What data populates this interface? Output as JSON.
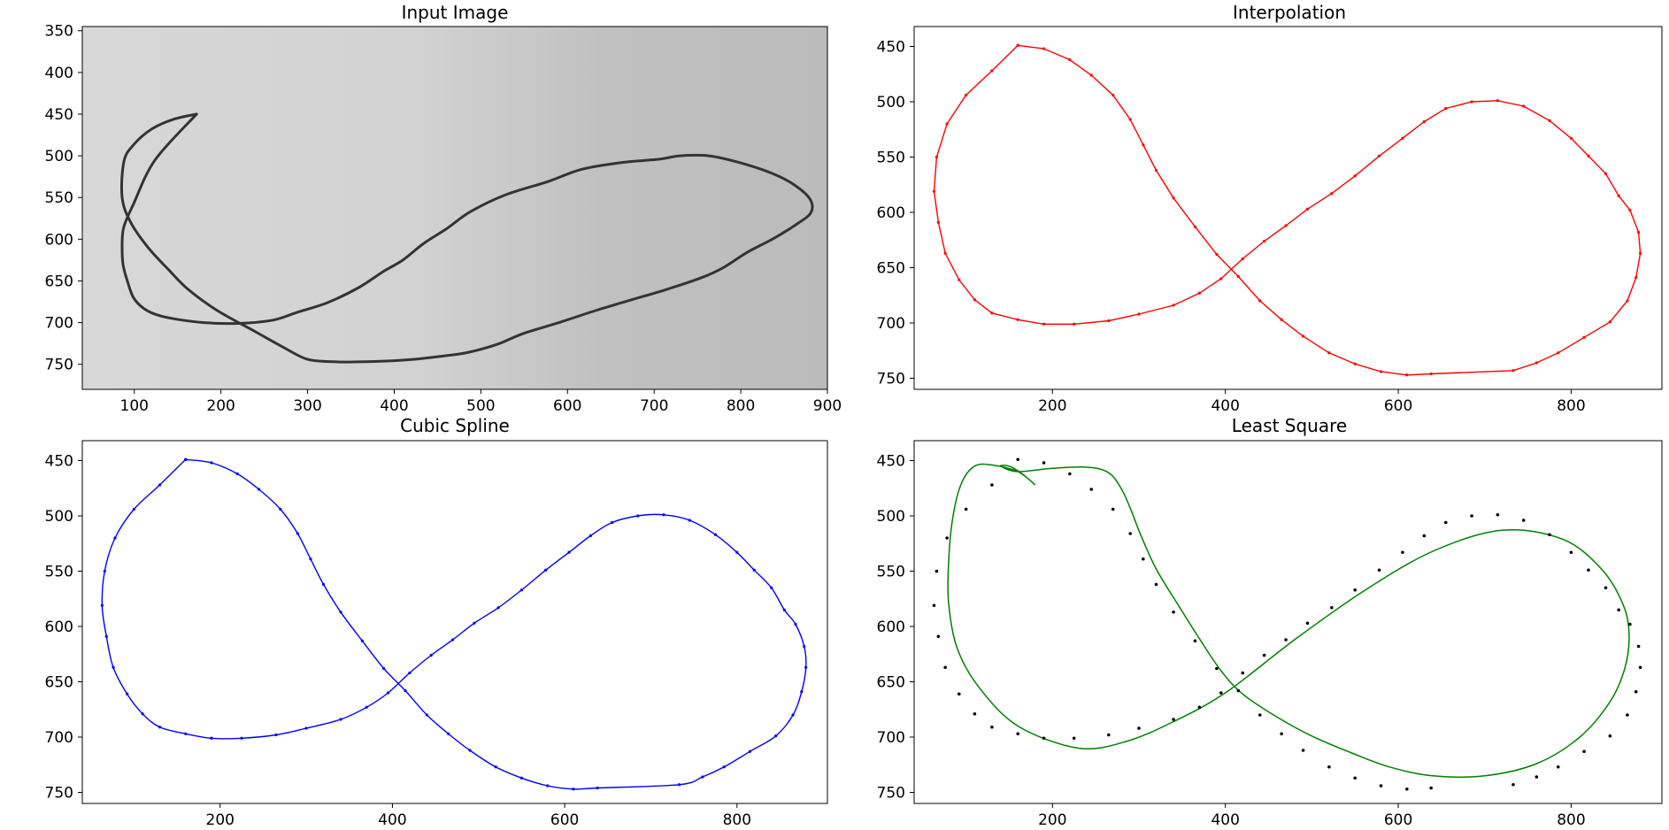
{
  "chart_data": [
    {
      "type": "image",
      "title": "Input Image",
      "xlim": [
        40,
        900
      ],
      "ylim": [
        780,
        345
      ],
      "xticks": [
        100,
        200,
        300,
        400,
        500,
        600,
        700,
        800,
        900
      ],
      "yticks": [
        350,
        400,
        450,
        500,
        550,
        600,
        650,
        700,
        750
      ],
      "background": "grayscale photo of a hand-drawn figure-eight curve",
      "stroke_color": "#333333",
      "curve": {
        "x": [
          172,
          146,
          120,
          99,
          88,
          86,
          96,
          116,
          140,
          162,
          195,
          240,
          271,
          300,
          333,
          359,
          392,
          422,
          449,
          484,
          519,
          549,
          590,
          634,
          676,
          715,
          755,
          780,
          807,
          838,
          866,
          881,
          880,
          862,
          836,
          798,
          763,
          730,
          706,
          663,
          617,
          577,
          528,
          488,
          461,
          434,
          410,
          387,
          359,
          323,
          287,
          260,
          220,
          181,
          149,
          127,
          111,
          99,
          92,
          87,
          86,
          88,
          99,
          124,
          172
        ],
        "y": [
          450,
          456,
          468,
          487,
          507,
          550,
          580,
          610,
          637,
          660,
          685,
          711,
          729,
          744,
          747,
          747,
          746,
          744,
          741,
          736,
          726,
          713,
          700,
          685,
          672,
          660,
          646,
          634,
          616,
          599,
          581,
          568,
          552,
          535,
          521,
          508,
          500,
          500,
          504,
          508,
          516,
          531,
          547,
          567,
          587,
          605,
          625,
          639,
          658,
          676,
          688,
          697,
          701,
          700,
          696,
          691,
          683,
          670,
          650,
          630,
          605,
          585,
          558,
          505,
          450
        ]
      }
    },
    {
      "type": "line",
      "title": "Interpolation",
      "xlim": [
        40,
        905
      ],
      "ylim": [
        760,
        432
      ],
      "xticks": [
        200,
        400,
        600,
        800
      ],
      "yticks": [
        450,
        500,
        550,
        600,
        650,
        700,
        750
      ],
      "color": "#ff0000",
      "x": [
        160,
        190,
        220,
        245,
        270,
        290,
        305,
        320,
        340,
        365,
        390,
        415,
        440,
        465,
        490,
        520,
        550,
        580,
        610,
        638,
        733,
        760,
        785,
        815,
        845,
        865,
        875,
        880,
        878,
        868,
        855,
        840,
        820,
        800,
        775,
        745,
        715,
        685,
        655,
        630,
        605,
        578,
        550,
        523,
        495,
        470,
        445,
        420,
        395,
        370,
        340,
        300,
        265,
        225,
        190,
        160,
        130,
        110,
        92,
        76,
        68,
        63,
        66,
        78,
        100,
        130,
        160
      ],
      "y": [
        449,
        452,
        462,
        476,
        494,
        516,
        539,
        562,
        587,
        613,
        638,
        658,
        680,
        697,
        712,
        727,
        737,
        744,
        747,
        746,
        743,
        736,
        727,
        713,
        699,
        680,
        659,
        637,
        618,
        598,
        585,
        565,
        549,
        533,
        517,
        504,
        499,
        500,
        506,
        518,
        533,
        549,
        567,
        583,
        597,
        612,
        626,
        642,
        660,
        673,
        684,
        692,
        698,
        701,
        701,
        697,
        691,
        679,
        661,
        637,
        609,
        581,
        550,
        520,
        494,
        472,
        449
      ]
    },
    {
      "type": "line",
      "title": "Cubic Spline",
      "xlim": [
        40,
        905
      ],
      "ylim": [
        760,
        432
      ],
      "xticks": [
        200,
        400,
        600,
        800
      ],
      "yticks": [
        450,
        500,
        550,
        600,
        650,
        700,
        750
      ],
      "color": "#0000ff",
      "x": [
        160,
        190,
        220,
        245,
        270,
        290,
        305,
        320,
        340,
        365,
        390,
        415,
        440,
        465,
        490,
        520,
        550,
        580,
        610,
        638,
        733,
        760,
        785,
        815,
        845,
        865,
        875,
        880,
        878,
        868,
        855,
        840,
        820,
        800,
        775,
        745,
        715,
        685,
        655,
        630,
        605,
        578,
        550,
        523,
        495,
        470,
        445,
        420,
        395,
        370,
        340,
        300,
        265,
        225,
        190,
        160,
        130,
        110,
        92,
        76,
        68,
        63,
        66,
        78,
        100,
        130,
        160
      ],
      "y": [
        449,
        452,
        462,
        476,
        494,
        516,
        539,
        562,
        587,
        613,
        638,
        658,
        680,
        697,
        712,
        727,
        737,
        744,
        747,
        746,
        743,
        736,
        727,
        713,
        699,
        680,
        659,
        637,
        618,
        598,
        585,
        565,
        549,
        533,
        517,
        504,
        499,
        500,
        506,
        518,
        533,
        549,
        567,
        583,
        597,
        612,
        626,
        642,
        660,
        673,
        684,
        692,
        698,
        701,
        701,
        697,
        691,
        679,
        661,
        637,
        609,
        581,
        550,
        520,
        494,
        472,
        449
      ]
    },
    {
      "type": "scatter+line",
      "title": "Least Square",
      "xlim": [
        40,
        905
      ],
      "ylim": [
        760,
        432
      ],
      "xticks": [
        200,
        400,
        600,
        800
      ],
      "yticks": [
        450,
        500,
        550,
        600,
        650,
        700,
        750
      ],
      "points_color": "#000000",
      "fit_color": "#008000",
      "points": {
        "x": [
          160,
          190,
          220,
          245,
          270,
          290,
          305,
          320,
          340,
          365,
          390,
          415,
          440,
          465,
          490,
          520,
          550,
          580,
          610,
          638,
          733,
          760,
          785,
          815,
          845,
          865,
          875,
          880,
          878,
          868,
          855,
          840,
          820,
          800,
          775,
          745,
          715,
          685,
          655,
          630,
          605,
          578,
          550,
          523,
          495,
          470,
          445,
          420,
          395,
          370,
          340,
          300,
          265,
          225,
          190,
          160,
          130,
          110,
          92,
          76,
          68,
          63,
          66,
          78,
          100,
          130
        ],
        "y": [
          449,
          452,
          462,
          476,
          494,
          516,
          539,
          562,
          587,
          613,
          638,
          658,
          680,
          697,
          712,
          727,
          737,
          744,
          747,
          746,
          743,
          736,
          727,
          713,
          699,
          680,
          659,
          637,
          618,
          598,
          585,
          565,
          549,
          533,
          517,
          504,
          499,
          500,
          506,
          518,
          533,
          549,
          567,
          583,
          597,
          612,
          626,
          642,
          660,
          673,
          684,
          692,
          698,
          701,
          701,
          697,
          691,
          679,
          661,
          637,
          609,
          581,
          550,
          520,
          494,
          472
        ]
      },
      "fit": {
        "x": [
          180,
          160,
          130,
          110,
          95,
          85,
          80,
          80,
          90,
          115,
          160,
          230,
          285,
          340,
          400,
          480,
          560,
          640,
          720,
          790,
          835,
          860,
          867,
          862,
          845,
          810,
          760,
          700,
          640,
          590,
          545,
          500,
          460,
          420,
          395,
          370,
          345,
          320,
          302,
          290,
          280,
          265,
          240,
          200,
          160,
          140,
          150,
          165,
          180
        ],
        "y": [
          472,
          460,
          454,
          455,
          470,
          500,
          540,
          580,
          620,
          655,
          690,
          710,
          704,
          686,
          660,
          612,
          568,
          532,
          513,
          521,
          548,
          580,
          608,
          638,
          668,
          700,
          724,
          735,
          735,
          727,
          714,
          699,
          682,
          661,
          640,
          611,
          580,
          548,
          517,
          493,
          476,
          461,
          456,
          457,
          460,
          455,
          455,
          462,
          472
        ]
      }
    }
  ]
}
